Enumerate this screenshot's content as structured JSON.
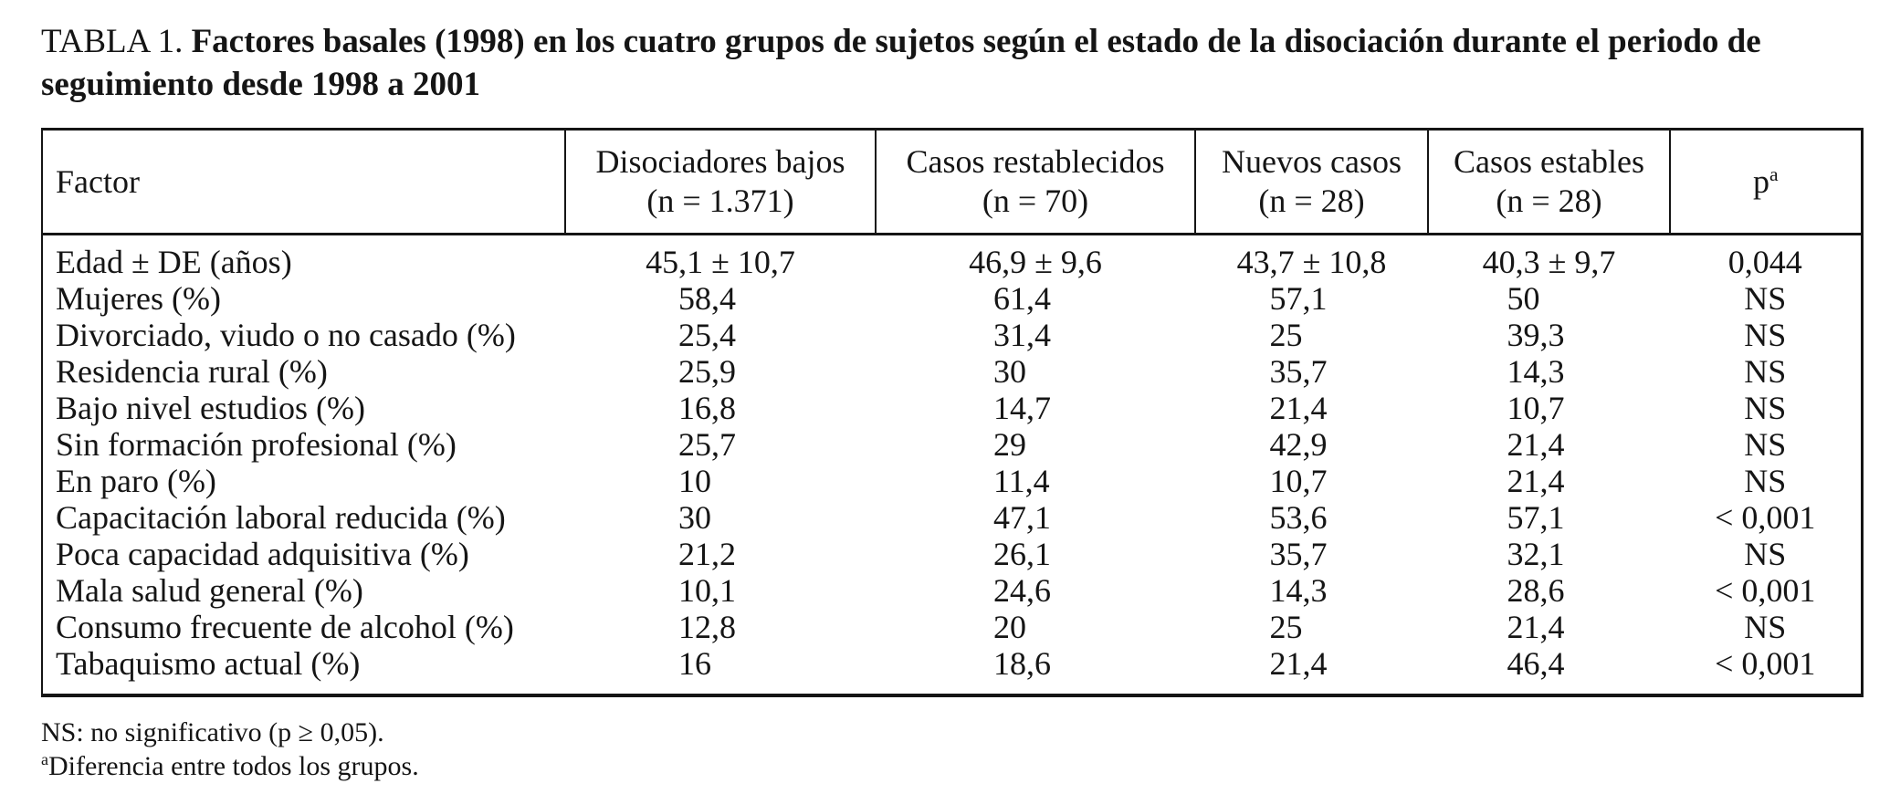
{
  "title": {
    "label": "TABLA 1.",
    "text": "Factores basales (1998) en los cuatro grupos de sujetos según el estado de la disociación durante el periodo de seguimiento desde 1998 a 2001"
  },
  "table": {
    "columns": [
      {
        "label": "Factor"
      },
      {
        "line1": "Disociadores bajos",
        "line2": "(n = 1.371)"
      },
      {
        "line1": "Casos restablecidos",
        "line2": "(n = 70)"
      },
      {
        "line1": "Nuevos casos",
        "line2": "(n = 28)"
      },
      {
        "line1": "Casos estables",
        "line2": "(n = 28)"
      },
      {
        "label": "p",
        "sup": "a"
      }
    ],
    "rows": [
      {
        "factor": "Edad ± DE (años)",
        "values": [
          "45,1 ± 10,7",
          "46,9 ± 9,6",
          "43,7 ± 10,8",
          "40,3 ± 9,7",
          "0,044"
        ]
      },
      {
        "factor": "Mujeres (%)",
        "values": [
          "58,4",
          "61,4",
          "57,1",
          "50",
          "NS"
        ]
      },
      {
        "factor": "Divorciado, viudo o no casado (%)",
        "values": [
          "25,4",
          "31,4",
          "25",
          "39,3",
          "NS"
        ]
      },
      {
        "factor": "Residencia rural (%)",
        "values": [
          "25,9",
          "30",
          "35,7",
          "14,3",
          "NS"
        ]
      },
      {
        "factor": "Bajo nivel estudios (%)",
        "values": [
          "16,8",
          "14,7",
          "21,4",
          "10,7",
          "NS"
        ]
      },
      {
        "factor": "Sin formación profesional (%)",
        "values": [
          "25,7",
          "29",
          "42,9",
          "21,4",
          "NS"
        ]
      },
      {
        "factor": "En paro (%)",
        "values": [
          "10",
          "11,4",
          "10,7",
          "21,4",
          "NS"
        ]
      },
      {
        "factor": "Capacitación laboral reducida (%)",
        "values": [
          "30",
          "47,1",
          "53,6",
          "57,1",
          "< 0,001"
        ]
      },
      {
        "factor": "Poca capacidad adquisitiva (%)",
        "values": [
          "21,2",
          "26,1",
          "35,7",
          "32,1",
          "NS"
        ]
      },
      {
        "factor": "Mala salud general (%)",
        "values": [
          "10,1",
          "24,6",
          "14,3",
          "28,6",
          "< 0,001"
        ]
      },
      {
        "factor": "Consumo frecuente de alcohol (%)",
        "values": [
          "12,8",
          "20",
          "25",
          "21,4",
          "NS"
        ]
      },
      {
        "factor": "Tabaquismo actual (%)",
        "values": [
          "16",
          "18,6",
          "21,4",
          "46,4",
          "< 0,001"
        ]
      }
    ]
  },
  "footnotes": {
    "ns": "NS: no significativo (p ≥ 0,05).",
    "a_sup": "a",
    "a_text": "Diferencia entre todos los grupos."
  }
}
